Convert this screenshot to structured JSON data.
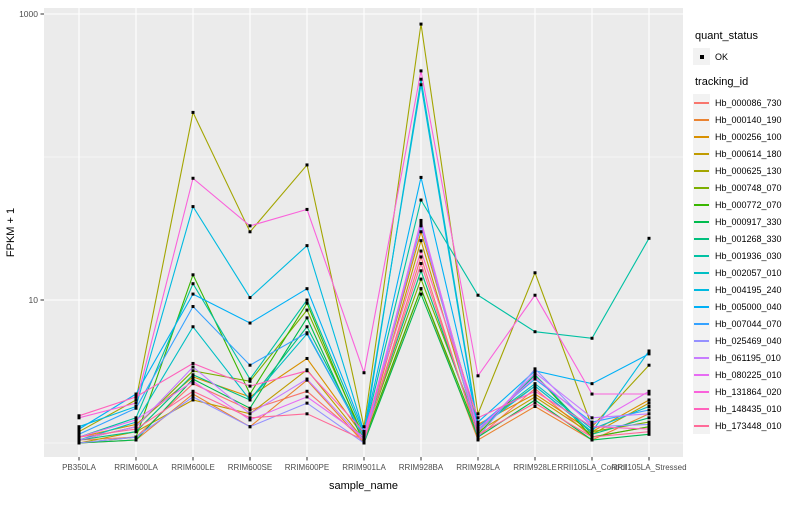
{
  "chart_data": {
    "type": "line",
    "title": "",
    "xlabel": "sample_name",
    "ylabel": "FPKM + 1",
    "y_scale": "log10",
    "y_ticks": [
      {
        "label": "1000",
        "value": 1000
      },
      {
        "label": "10",
        "value": 10
      }
    ],
    "y_minor_values": [
      100,
      1
    ],
    "ylim_log": [
      0.88,
      3.05
    ],
    "grid": "on",
    "legend_position": "right",
    "categories": [
      "PB350LA",
      "RRIM600LA",
      "RRIM600LE",
      "RRIM600SE",
      "RRIM600PE",
      "RRIM901LA",
      "RRIM928BA",
      "RRIM928LA",
      "RRIM928LE",
      "RRII105LA_Control",
      "RRII105LA_Stressed"
    ],
    "quant_legend": {
      "title": "quant_status",
      "items": [
        {
          "label": "OK",
          "marker": "point"
        }
      ]
    },
    "series_legend_title": "tracking_id",
    "series": [
      {
        "name": "Hb_000086_730",
        "color": "#F8766D",
        "values": [
          1.05,
          1.1,
          2.6,
          1.7,
          2.3,
          1.05,
          20,
          1.1,
          2.4,
          1.1,
          1.3
        ]
      },
      {
        "name": "Hb_000140_190",
        "color": "#EA8331",
        "values": [
          1.0,
          1.05,
          2.2,
          1.3,
          2.75,
          1.0,
          12,
          1.05,
          1.8,
          1.05,
          1.6
        ]
      },
      {
        "name": "Hb_000256_100",
        "color": "#D89000",
        "values": [
          1.1,
          1.35,
          2.9,
          2.1,
          3.9,
          1.1,
          30,
          1.35,
          2.2,
          1.2,
          2.0
        ]
      },
      {
        "name": "Hb_000614_180",
        "color": "#C09B00",
        "values": [
          1.0,
          1.2,
          2.0,
          1.6,
          3.25,
          1.05,
          26,
          1.2,
          2.1,
          1.15,
          1.9
        ]
      },
      {
        "name": "Hb_000625_130",
        "color": "#A3A500",
        "values": [
          1.2,
          2.0,
          205,
          30,
          88,
          1.3,
          850,
          1.6,
          15.5,
          1.3,
          3.5
        ]
      },
      {
        "name": "Hb_000748_070",
        "color": "#7CAE00",
        "values": [
          1.05,
          1.3,
          3.2,
          2.7,
          8.5,
          1.1,
          14,
          1.3,
          2.5,
          1.2,
          1.4
        ]
      },
      {
        "name": "Hb_000772_070",
        "color": "#39B600",
        "values": [
          1.0,
          1.1,
          15,
          2.2,
          9.5,
          1.05,
          12,
          1.15,
          3.0,
          1.1,
          1.3
        ]
      },
      {
        "name": "Hb_000917_330",
        "color": "#00BB4E",
        "values": [
          1.0,
          1.05,
          2.8,
          1.75,
          7.5,
          1.0,
          11,
          1.1,
          2.0,
          1.05,
          1.15
        ]
      },
      {
        "name": "Hb_001268_330",
        "color": "#00BF7D",
        "values": [
          1.05,
          1.2,
          3.0,
          2.0,
          6.5,
          1.1,
          16,
          1.2,
          3.0,
          1.15,
          1.5
        ]
      },
      {
        "name": "Hb_001936_030",
        "color": "#00C1A3",
        "values": [
          1.1,
          1.5,
          13,
          2.8,
          10,
          1.15,
          50,
          10.8,
          6.0,
          5.4,
          27
        ]
      },
      {
        "name": "Hb_002057_010",
        "color": "#00BFC4",
        "values": [
          1.05,
          1.4,
          6.5,
          2.0,
          5.8,
          1.1,
          350,
          1.3,
          2.6,
          1.25,
          1.8
        ]
      },
      {
        "name": "Hb_004195_240",
        "color": "#00BAE0",
        "values": [
          1.3,
          1.8,
          45,
          10.4,
          24,
          1.2,
          320,
          1.25,
          2.5,
          1.2,
          4.4
        ]
      },
      {
        "name": "Hb_005000_040",
        "color": "#00B0F6",
        "values": [
          1.25,
          2.2,
          11,
          6.9,
          12,
          1.2,
          72,
          1.4,
          3.2,
          2.6,
          4.2
        ]
      },
      {
        "name": "Hb_007044_070",
        "color": "#35A2FF",
        "values": [
          1.15,
          1.75,
          9,
          3.5,
          5.9,
          1.1,
          33,
          1.3,
          2.8,
          1.4,
          1.7
        ]
      },
      {
        "name": "Hb_025469_040",
        "color": "#9590FF",
        "values": [
          1.0,
          1.1,
          2.1,
          1.3,
          1.9,
          1.0,
          34,
          1.1,
          3.3,
          1.3,
          1.35
        ]
      },
      {
        "name": "Hb_061195_010",
        "color": "#C77CFF",
        "values": [
          1.05,
          1.3,
          3.4,
          1.6,
          2.8,
          1.05,
          36,
          1.2,
          3.1,
          1.5,
          1.6
        ]
      },
      {
        "name": "Hb_080225_010",
        "color": "#E76BF3",
        "values": [
          1.1,
          1.45,
          2.7,
          1.45,
          2.1,
          1.1,
          35,
          1.25,
          2.9,
          1.35,
          2.3
        ]
      },
      {
        "name": "Hb_131864_020",
        "color": "#FA62DB",
        "values": [
          1.5,
          1.9,
          71,
          33,
          43,
          3.1,
          400,
          2.95,
          10.8,
          2.2,
          2.2
        ]
      },
      {
        "name": "Hb_148435_010",
        "color": "#FF62BC",
        "values": [
          1.55,
          2.1,
          3.6,
          2.5,
          3.2,
          1.2,
          22,
          1.5,
          2.3,
          1.3,
          1.25
        ]
      },
      {
        "name": "Hb_173448_010",
        "color": "#FF6A98",
        "values": [
          1.1,
          1.25,
          2.3,
          1.5,
          1.6,
          1.05,
          18,
          1.15,
          1.9,
          1.1,
          1.2
        ]
      }
    ],
    "panel_color": "#EBEBEB",
    "gridline_color": "#FFFFFF",
    "tick_label_color": "#4D4D4D",
    "point_color": "#000000"
  }
}
